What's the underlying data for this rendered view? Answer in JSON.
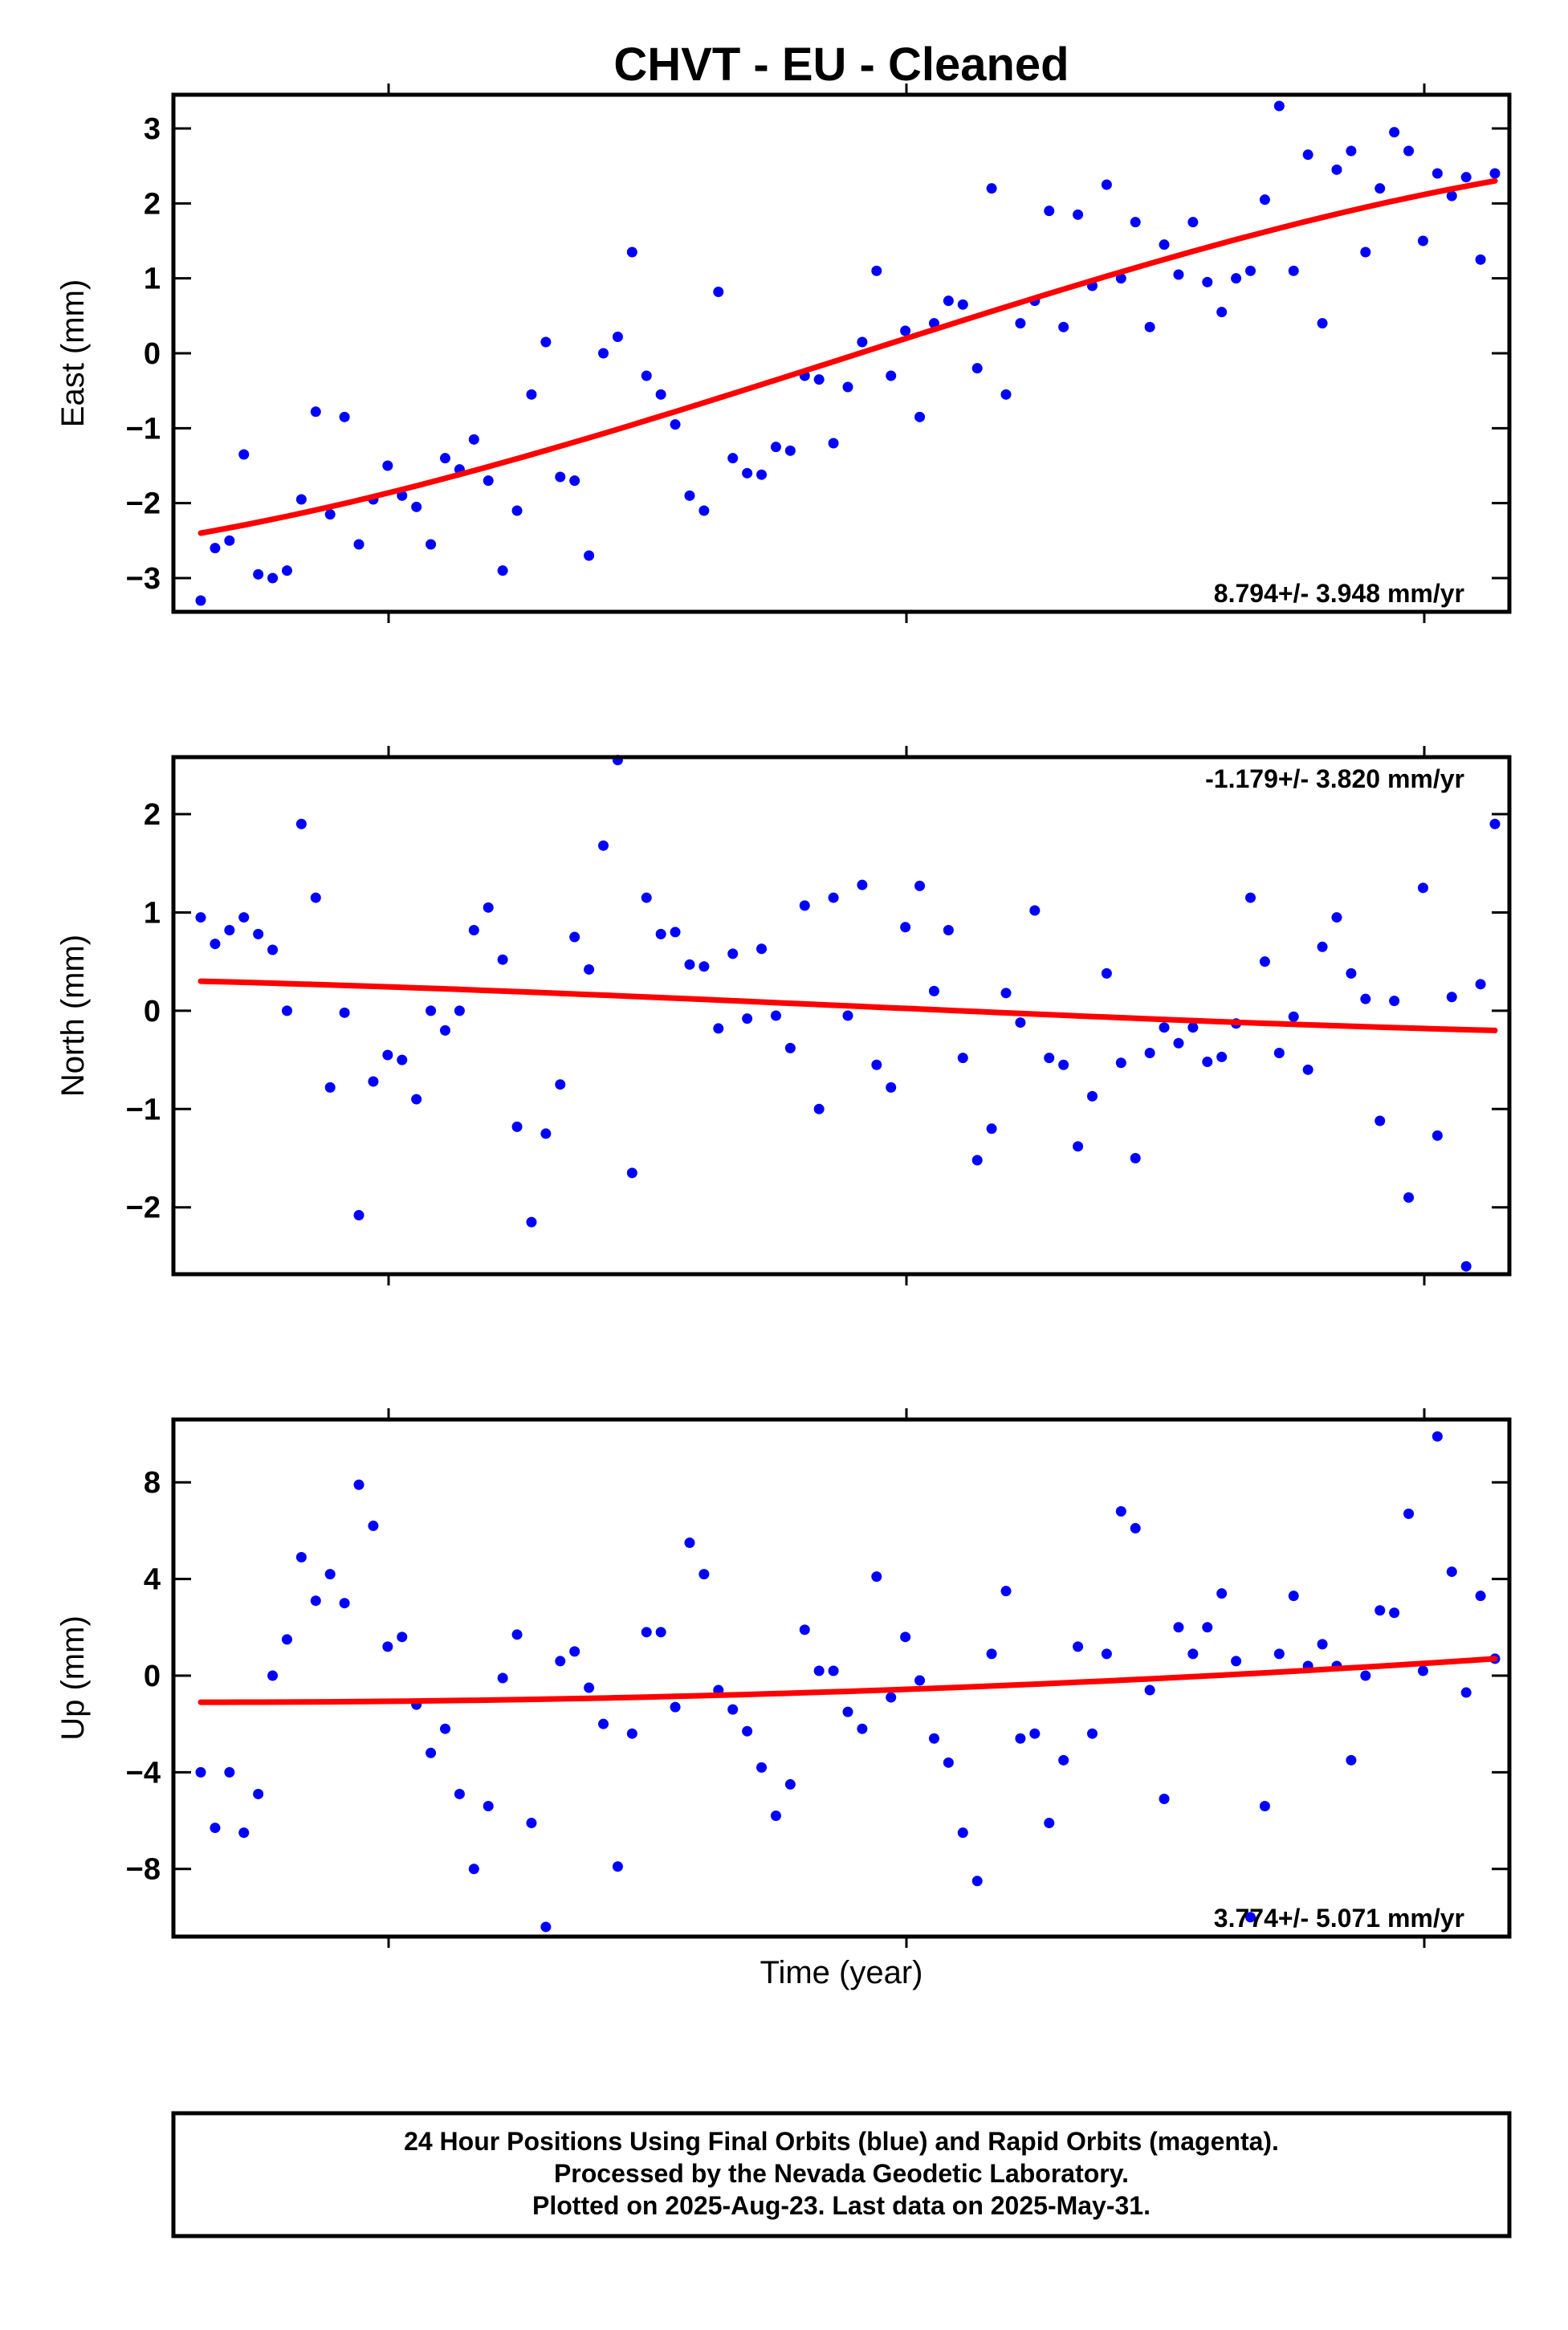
{
  "title": "CHVT  - EU - Cleaned",
  "x_axis_label": "Time (year)",
  "footer": {
    "line1": "24 Hour Positions Using Final Orbits (blue) and Rapid Orbits (magenta).",
    "line2": "Processed by the Nevada Geodetic Laboratory.",
    "line3": "Plotted on 2025-Aug-23. Last data on 2025-May-31."
  },
  "colors": {
    "final_orbits": "#0000ff",
    "trend": "#ff0000",
    "frame": "#000000"
  },
  "chart_data": [
    {
      "type": "scatter",
      "ylabel": "East (mm)",
      "ylim": [
        -3.45,
        3.45
      ],
      "yticks": [
        "3",
        "2",
        "1",
        "0",
        "−1",
        "−2",
        "−3"
      ],
      "ytick_values": [
        3,
        2,
        1,
        0,
        -1,
        -2,
        -3
      ],
      "rate": "8.794+/- 3.948 mm/yr",
      "rate_position": "bottom-right",
      "xlim": [
        0,
        1
      ],
      "series": [
        {
          "values": [
            -3.3,
            -2.6,
            -2.5,
            -1.35,
            -2.95,
            -3.0,
            -2.9,
            -1.95,
            -0.78,
            -2.15,
            -0.85,
            -2.55,
            -1.95,
            -1.5,
            -1.9,
            -2.05,
            -2.55,
            -1.4,
            -1.55,
            -1.15,
            -1.7,
            -2.9,
            -2.1,
            -0.55,
            0.15,
            -1.65,
            -1.7,
            -2.7,
            0.0,
            0.22,
            1.35,
            -0.3,
            -0.55,
            -0.95,
            -1.9,
            -2.1,
            0.82,
            -1.4,
            -1.6,
            -1.62,
            -1.25,
            -1.3,
            -0.3,
            -0.35,
            -1.2,
            -0.45,
            0.15,
            1.1,
            -0.3,
            0.3,
            -0.85,
            0.4,
            0.7,
            0.65,
            -0.2,
            2.2,
            -0.55,
            0.4,
            0.7,
            1.9,
            0.35,
            1.85,
            0.9,
            2.25,
            1.0,
            1.75,
            0.35,
            1.45,
            1.05,
            1.75,
            0.95,
            0.55,
            1.0,
            1.1,
            2.05,
            3.3,
            1.1,
            2.65,
            0.4,
            2.45,
            2.7,
            1.35,
            2.2,
            2.95,
            2.7,
            1.5,
            2.4,
            2.1,
            2.35,
            1.25,
            2.4
          ]
        }
      ],
      "trend": {
        "start": -2.4,
        "end": 2.3,
        "shape": "s-curve"
      }
    },
    {
      "type": "scatter",
      "ylabel": "North (mm)",
      "ylim": [
        -2.68,
        2.58
      ],
      "yticks": [
        "2",
        "1",
        "0",
        "−1",
        "−2"
      ],
      "ytick_values": [
        2,
        1,
        0,
        -1,
        -2
      ],
      "rate": "-1.179+/- 3.820 mm/yr",
      "rate_position": "top-right",
      "xlim": [
        0,
        1
      ],
      "series": [
        {
          "values": [
            0.95,
            0.68,
            0.82,
            0.95,
            0.78,
            0.62,
            0.0,
            1.9,
            1.15,
            -0.78,
            -0.02,
            -2.08,
            -0.72,
            -0.45,
            -0.5,
            -0.9,
            0.0,
            -0.2,
            0.0,
            0.82,
            1.05,
            0.52,
            -1.18,
            -2.15,
            -1.25,
            -0.75,
            0.75,
            0.42,
            1.68,
            2.55,
            -1.65,
            1.15,
            0.78,
            0.8,
            0.47,
            0.45,
            -0.18,
            0.58,
            -0.08,
            0.63,
            -0.05,
            -0.38,
            1.07,
            -1.0,
            1.15,
            -0.05,
            1.28,
            -0.55,
            -0.78,
            0.85,
            1.27,
            0.2,
            0.82,
            -0.48,
            -1.52,
            -1.2,
            0.18,
            -0.12,
            1.02,
            -0.48,
            -0.55,
            -1.38,
            -0.87,
            0.38,
            -0.53,
            -1.5,
            -0.43,
            -0.17,
            -0.33,
            -0.17,
            -0.52,
            -0.47,
            -0.13,
            1.15,
            0.5,
            -0.43,
            -0.06,
            -0.6,
            0.65,
            0.95,
            0.38,
            0.12,
            -1.12,
            0.1,
            -1.9,
            1.25,
            -1.27,
            0.14,
            -2.6,
            0.27,
            1.9
          ]
        }
      ],
      "trend": {
        "start": 0.3,
        "end": -0.2,
        "shape": "s-curve"
      }
    },
    {
      "type": "scatter",
      "ylabel": "Up (mm)",
      "ylim": [
        -10.8,
        10.6
      ],
      "yticks": [
        "8",
        "4",
        "0",
        "−4",
        "−8"
      ],
      "ytick_values": [
        8,
        4,
        0,
        -4,
        -8
      ],
      "rate": "3.774+/- 5.071 mm/yr",
      "rate_position": "bottom-right",
      "xlim": [
        0,
        1
      ],
      "series": [
        {
          "values": [
            -4.0,
            -6.3,
            -4.0,
            -6.5,
            -4.9,
            0.0,
            1.5,
            4.9,
            3.1,
            4.2,
            3.0,
            7.9,
            6.2,
            1.2,
            1.6,
            -1.2,
            -3.2,
            -2.2,
            -4.9,
            -8.0,
            -5.4,
            -0.1,
            1.7,
            -6.1,
            -10.4,
            0.6,
            1.0,
            -0.5,
            -2.0,
            -7.9,
            -2.4,
            1.8,
            1.8,
            -1.3,
            5.5,
            4.2,
            -0.6,
            -1.4,
            -2.3,
            -3.8,
            -5.8,
            -4.5,
            1.9,
            0.2,
            0.2,
            -1.5,
            -2.2,
            4.1,
            -0.9,
            1.6,
            -0.2,
            -2.6,
            -3.6,
            -6.5,
            -8.5,
            0.9,
            3.5,
            -2.6,
            -2.4,
            -6.1,
            -3.5,
            1.2,
            -2.4,
            0.9,
            6.8,
            6.1,
            -0.6,
            -5.1,
            2.0,
            0.9,
            2.0,
            3.4,
            0.6,
            -10.0,
            -5.4,
            0.9,
            3.3,
            0.4,
            1.3,
            0.4,
            -3.5,
            0.0,
            2.7,
            2.6,
            6.7,
            0.2,
            9.9,
            4.3,
            -0.7,
            3.3,
            0.7
          ]
        }
      ],
      "trend": {
        "start": -1.1,
        "end": 0.7,
        "shape": "quadratic"
      }
    }
  ]
}
